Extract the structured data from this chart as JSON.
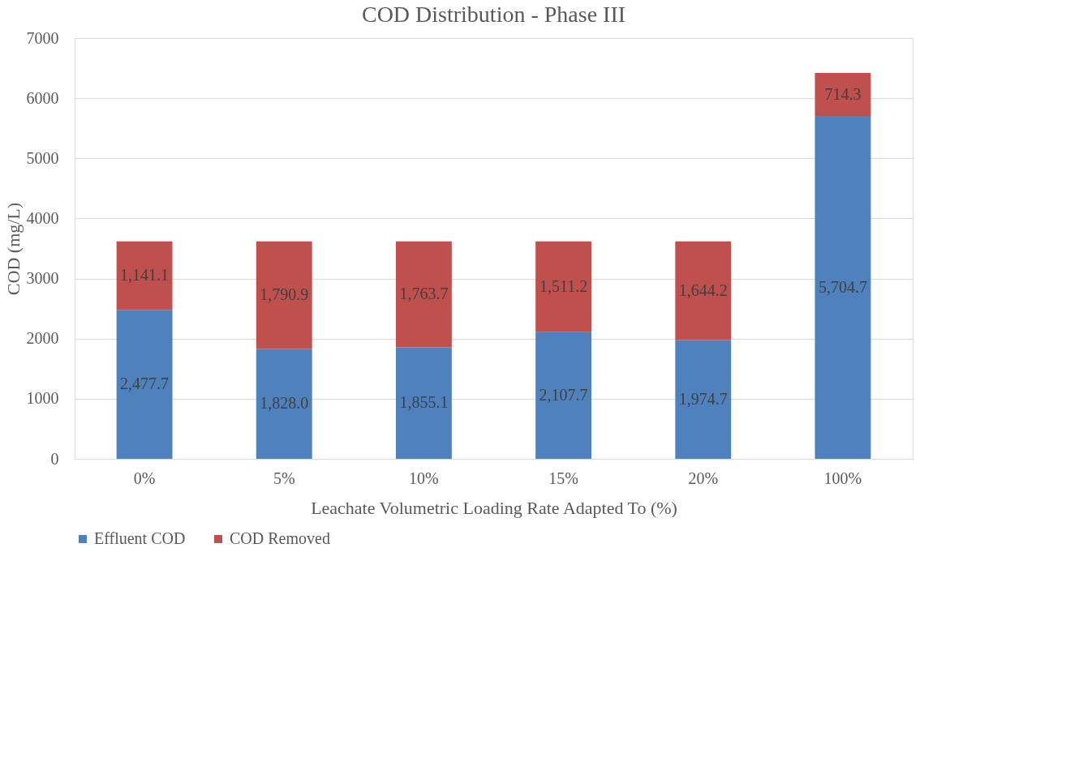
{
  "chart_data": {
    "type": "bar",
    "title": "COD Distribution - Phase III",
    "xlabel": "Leachate Volumetric Loading Rate Adapted To (%)",
    "ylabel": "COD (mg/L)",
    "categories": [
      "0%",
      "5%",
      "10%",
      "15%",
      "20%",
      "100%"
    ],
    "series": [
      {
        "name": "Effluent COD",
        "color": "#4f81bd",
        "values": [
          2477.7,
          1828.0,
          1855.1,
          2107.7,
          1974.7,
          5704.7
        ],
        "value_labels": [
          "2,477.7",
          "1,828.0",
          "1,855.1",
          "2,107.7",
          "1,974.7",
          "5,704.7"
        ]
      },
      {
        "name": "COD Removed",
        "color": "#c0504d",
        "values": [
          1141.1,
          1790.9,
          1763.7,
          1511.2,
          1644.2,
          714.3
        ],
        "value_labels": [
          "1,141.1",
          "1,790.9",
          "1,763.7",
          "1,511.2",
          "1,644.2",
          "714.3"
        ]
      }
    ],
    "stacked": true,
    "ylim": [
      0,
      7000
    ],
    "yticks": [
      0,
      1000,
      2000,
      3000,
      4000,
      5000,
      6000,
      7000
    ],
    "grid": "y",
    "legend": "bottom"
  }
}
